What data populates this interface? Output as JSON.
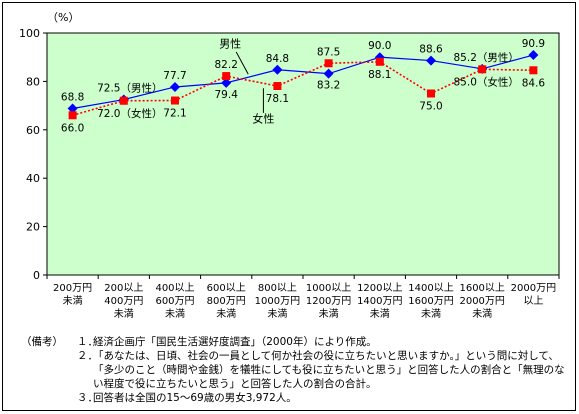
{
  "chart_data": {
    "type": "line",
    "ylabel": "（%）",
    "ylim": [
      0,
      100
    ],
    "yticks": [
      0,
      20,
      40,
      60,
      80,
      100
    ],
    "categories": [
      [
        "200万円",
        "未満"
      ],
      [
        "200以上",
        "400万円",
        "未満"
      ],
      [
        "400以上",
        "600万円",
        "未満"
      ],
      [
        "600以上",
        "800万円",
        "未満"
      ],
      [
        "800以上",
        "1000万円",
        "未満"
      ],
      [
        "1000以上",
        "1200万円",
        "未満"
      ],
      [
        "1200以上",
        "1400万円",
        "未満"
      ],
      [
        "1400以上",
        "1600万円",
        "未満"
      ],
      [
        "1600以上",
        "2000万円",
        "未満"
      ],
      [
        "2000万円",
        "以上"
      ]
    ],
    "series": [
      {
        "name": "男性",
        "color": "#0000ff",
        "marker": "diamond",
        "line": "solid",
        "values": [
          68.8,
          72.5,
          77.7,
          79.4,
          84.8,
          83.2,
          90.0,
          88.6,
          85.2,
          90.9
        ],
        "labels": [
          "68.8",
          "72.5（男性）",
          "77.7",
          "79.4",
          "84.8",
          "83.2",
          "90.0",
          "88.6",
          "85.2（男性）",
          "90.9"
        ]
      },
      {
        "name": "女性",
        "color": "#ff0000",
        "marker": "square",
        "line": "dotted",
        "values": [
          66.0,
          72.0,
          72.1,
          82.2,
          78.1,
          87.5,
          88.1,
          75.0,
          85.0,
          84.6
        ],
        "labels": [
          "66.0",
          "72.0（女性）",
          "72.1",
          "82.2",
          "78.1",
          "87.5",
          "88.1",
          "75.0",
          "85.0（女性）",
          "84.6"
        ]
      }
    ],
    "callouts": [
      "男性",
      "女性"
    ],
    "background": "#ccffcc",
    "grid": false
  },
  "notes": {
    "label": "（備考）",
    "items": [
      {
        "num": "１．",
        "text": "経済企画庁「国民生活選好度調査」（2000年）により作成。"
      },
      {
        "num": "２．",
        "text": "「あなたは、日頃、社会の一員として何か社会の役に立ちたいと思いますか。」という問に対して、「多少のこと（時間や金銭）を犠牲にしても役に立ちたいと思う」と回答した人の割合と「無理のない程度で役に立ちたいと思う」と回答した人の割合の合計。"
      },
      {
        "num": "３．",
        "text": "回答者は全国の15～69歳の男女3,972人。"
      }
    ]
  }
}
